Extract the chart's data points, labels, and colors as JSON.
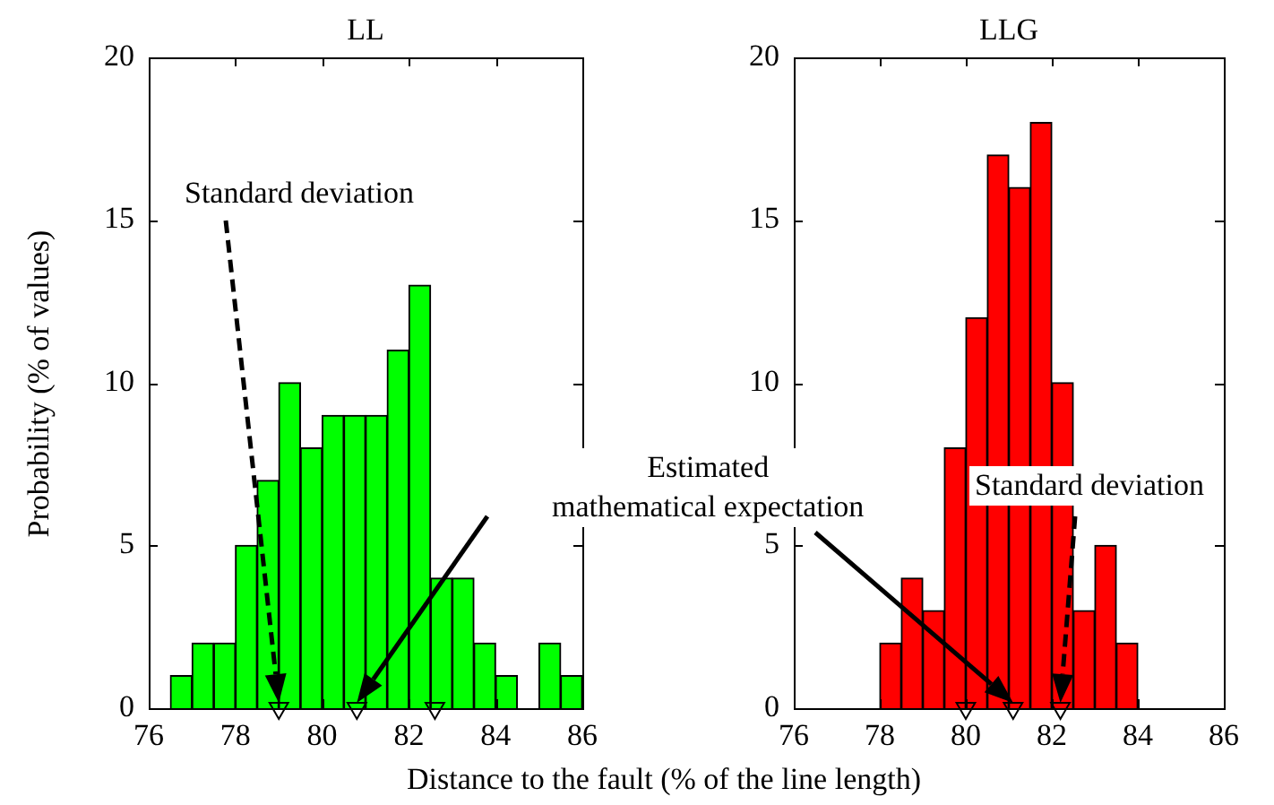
{
  "chart_data": [
    {
      "type": "histogram",
      "title": "LL",
      "xlabel": "Distance to the fault (% of the line length)",
      "ylabel": "Probability (% of values)",
      "bins": [
        76.5,
        77,
        77.5,
        78,
        78.5,
        79,
        79.5,
        80,
        80.5,
        81,
        81.5,
        82,
        82.5,
        83,
        83.5,
        84,
        84.5,
        85,
        85.5,
        86
      ],
      "xlim": [
        76,
        86
      ],
      "xticks": [
        76,
        78,
        80,
        82,
        84,
        86
      ],
      "ylim": [
        0,
        20
      ],
      "yticks": [
        0,
        5,
        10,
        15,
        20
      ],
      "marker": "triangle",
      "series": [
        {
          "color": "#00ff00",
          "values": [
            1,
            2,
            2,
            5,
            7,
            10,
            8,
            9,
            9,
            9,
            11,
            13,
            4,
            4,
            2,
            1,
            0,
            2,
            1
          ]
        },
        {
          "type": "scatter",
          "color": "#000000",
          "x": [
            79,
            80.8,
            82.6
          ],
          "values": [
            0,
            0,
            0
          ]
        }
      ],
      "annotations": [
        "Standard deviation",
        "Estimated\nmathematical expectation"
      ]
    },
    {
      "type": "histogram",
      "title": "LLG",
      "bins": [
        78,
        78.5,
        79,
        79.5,
        80,
        80.5,
        81,
        81.5,
        82,
        82.5,
        83,
        83.5,
        84
      ],
      "xlim": [
        76,
        86
      ],
      "xticks": [
        76,
        78,
        80,
        82,
        84,
        86
      ],
      "ylim": [
        0,
        20
      ],
      "yticks": [
        0,
        5,
        10,
        15,
        20
      ],
      "marker": "triangle",
      "series": [
        {
          "color": "#ff0000",
          "values": [
            2,
            4,
            3,
            8,
            12,
            17,
            16,
            18,
            10,
            3,
            5,
            2
          ]
        },
        {
          "type": "scatter",
          "color": "#000000",
          "x": [
            80,
            81.1,
            82.2
          ],
          "values": [
            0,
            0,
            0
          ]
        }
      ],
      "annotations": [
        "Standard deviation"
      ]
    }
  ]
}
